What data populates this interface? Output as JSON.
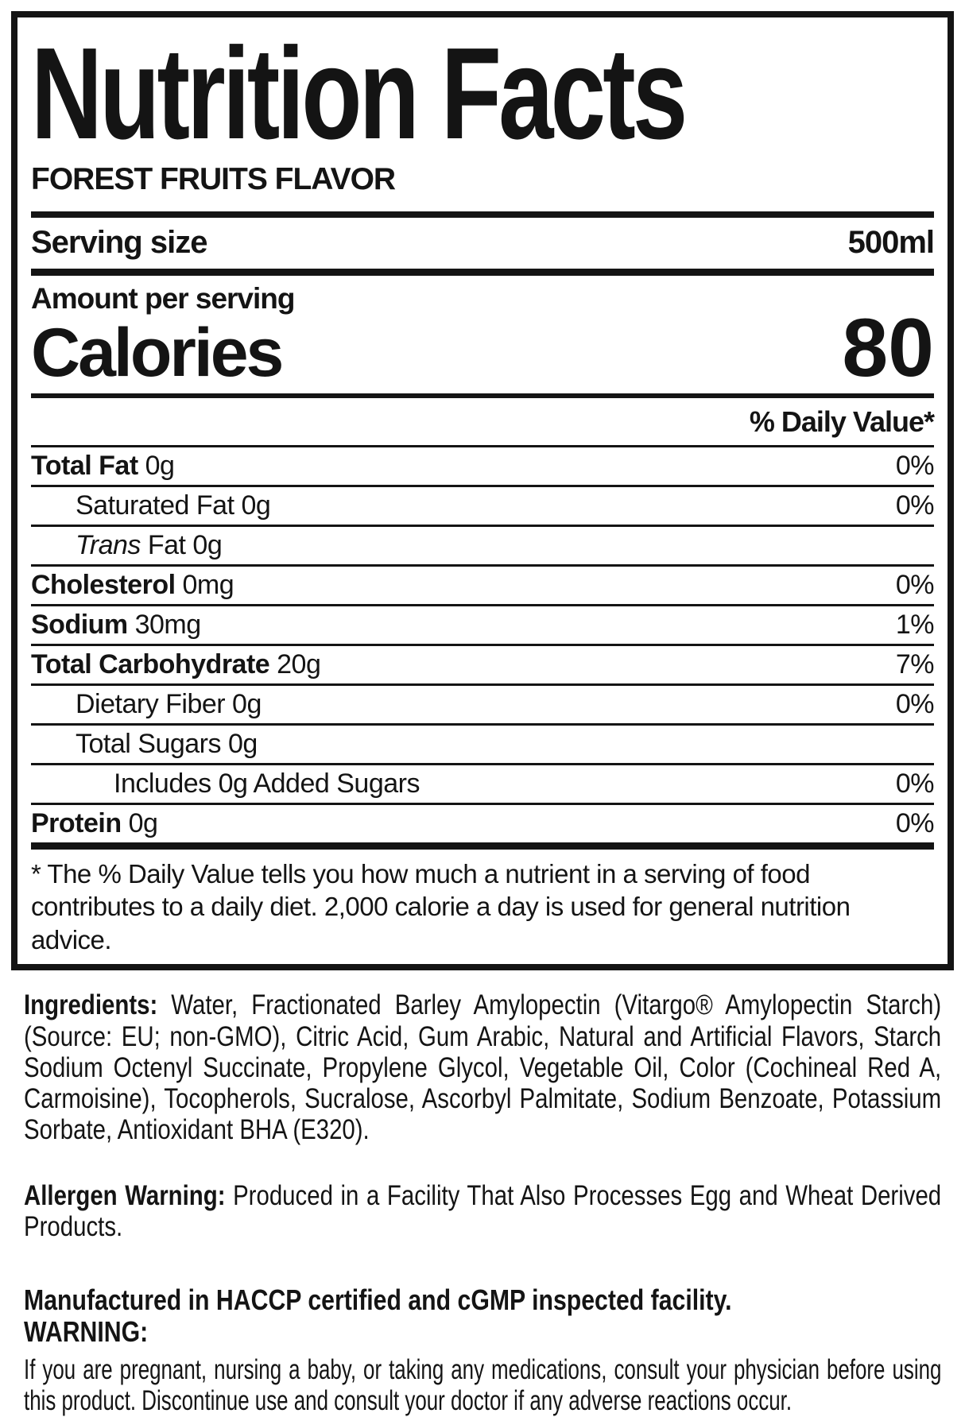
{
  "label": {
    "title": "Nutrition Facts",
    "flavor": "FOREST FRUITS FLAVOR",
    "serving": {
      "label": "Serving size",
      "value": "500ml"
    },
    "amount_per_serving": "Amount per serving",
    "calories": {
      "label": "Calories",
      "value": "80"
    },
    "daily_value_header": "% Daily Value*",
    "rows": [
      {
        "bold": "Total Fat",
        "text": "0g",
        "dv": "0%",
        "indent": 0
      },
      {
        "text": "Saturated Fat 0g",
        "dv": "0%",
        "indent": 1
      },
      {
        "italic": "Trans",
        "text": "Fat 0g",
        "dv": "",
        "indent": 1
      },
      {
        "bold": "Cholesterol",
        "text": "0mg",
        "dv": "0%",
        "indent": 0
      },
      {
        "bold": "Sodium",
        "text": "30mg",
        "dv": "1%",
        "indent": 0
      },
      {
        "bold": "Total Carbohydrate",
        "text": "20g",
        "dv": "7%",
        "indent": 0
      },
      {
        "text": "Dietary Fiber 0g",
        "dv": "0%",
        "indent": 1
      },
      {
        "text": "Total Sugars 0g",
        "dv": "",
        "indent": 1
      },
      {
        "text": "Includes 0g Added Sugars",
        "dv": "0%",
        "indent": 2
      },
      {
        "bold": "Protein",
        "text": "0g",
        "dv": "0%",
        "indent": 0,
        "last": true
      }
    ],
    "footnote": "* The % Daily Value tells you how much a nutrient in a serving of food contributes to a daily diet. 2,000 calorie a day is used for general nutrition advice."
  },
  "info": {
    "ingredients": {
      "label": "Ingredients:",
      "text": "Water, Fractionated Barley Amylopectin (Vitargo® Amylopectin Starch) (Source: EU; non-GMO), Citric Acid, Gum Arabic, Natural and Artificial Flavors, Starch Sodium Octenyl Succinate, Propylene Glycol, Vegetable Oil, Color (Cochineal Red A, Carmoisine), Tocopherols, Sucralose, Ascorbyl Palmitate, Sodium Benzoate, Potassium Sorbate, Antioxidant BHA (E320)."
    },
    "allergen": {
      "label": "Allergen Warning:",
      "text": "Produced in a Facility That Also Processes Egg and Wheat Derived Products."
    },
    "manufactured": "Manufactured in HACCP certified and cGMP inspected facility.",
    "warning": {
      "label": "WARNING:",
      "text": "If you are pregnant, nursing a baby, or taking any medications, consult your physician before using this product. Discontinue use and consult your doctor if any adverse reactions occur."
    }
  },
  "colors": {
    "text": "#141414",
    "background": "#ffffff"
  }
}
